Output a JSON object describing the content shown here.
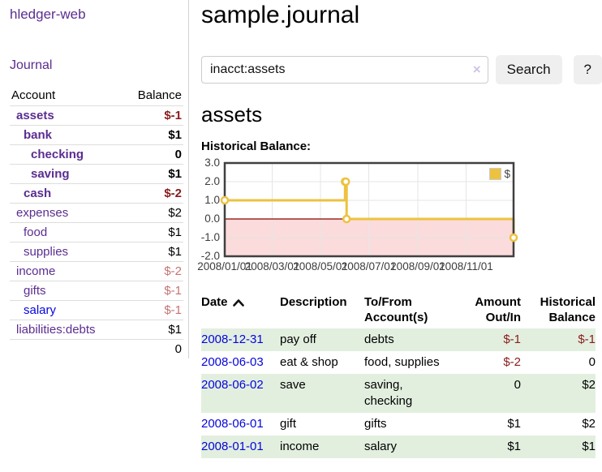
{
  "app": {
    "brand": "hledger-web"
  },
  "colors": {
    "accent_purple": "#5b2d90",
    "link_blue": "#0505dd",
    "negative_strong": "#8b1b1b",
    "negative_soft": "#c47472",
    "row_stripe_green": "#e2efdf",
    "chart_line": "#edc240",
    "chart_negative_fill": "#fbdbdb",
    "chart_zero_line": "#8b0000"
  },
  "sidebar": {
    "journal_link": "Journal",
    "accounts_table": {
      "headers": [
        "Account",
        "Balance"
      ],
      "rows": [
        {
          "account": "assets",
          "balance": "$-1",
          "indent": 1,
          "in_account": true,
          "negative": "strong"
        },
        {
          "account": "bank",
          "balance": "$1",
          "indent": 2,
          "in_account": true,
          "negative": null
        },
        {
          "account": "checking",
          "balance": "0",
          "indent": 3,
          "in_account": true,
          "negative": null
        },
        {
          "account": "saving",
          "balance": "$1",
          "indent": 3,
          "in_account": true,
          "negative": null
        },
        {
          "account": "cash",
          "balance": "$-2",
          "indent": 2,
          "in_account": true,
          "negative": "strong"
        },
        {
          "account": "expenses",
          "balance": "$2",
          "indent": 1,
          "in_account": false,
          "negative": null
        },
        {
          "account": "food",
          "balance": "$1",
          "indent": 2,
          "in_account": false,
          "negative": null
        },
        {
          "account": "supplies",
          "balance": "$1",
          "indent": 2,
          "in_account": false,
          "negative": null
        },
        {
          "account": "income",
          "balance": "$-2",
          "indent": 1,
          "in_account": false,
          "negative": "soft"
        },
        {
          "account": "gifts",
          "balance": "$-1",
          "indent": 2,
          "in_account": false,
          "negative": "soft"
        },
        {
          "account": "salary",
          "balance": "$-1",
          "indent": 2,
          "in_account": false,
          "negative": "soft",
          "link_color": "blue"
        },
        {
          "account": "liabilities:debts",
          "balance": "$1",
          "indent": 1,
          "in_account": false,
          "negative": null
        }
      ],
      "total": "0"
    }
  },
  "main": {
    "title": "sample.journal",
    "search": {
      "value": "inacct:assets",
      "clear_icon": "×",
      "button_label": "Search",
      "help_label": "?"
    },
    "account_heading": "assets",
    "chart_label": "Historical Balance:"
  },
  "chart_data": {
    "type": "line",
    "title": "Historical Balance",
    "step": true,
    "x_range": [
      "2008-01-01",
      "2008-12-31"
    ],
    "y_range": [
      -2,
      3
    ],
    "y_ticks": [
      {
        "value": 3,
        "label": "3.0"
      },
      {
        "value": 2,
        "label": "2.0"
      },
      {
        "value": 1,
        "label": "1.0"
      },
      {
        "value": 0,
        "label": "0.0"
      },
      {
        "value": -1,
        "label": "-1.0"
      },
      {
        "value": -2,
        "label": "-2.0"
      }
    ],
    "x_ticks": [
      {
        "value": "2008-01-01",
        "label": "2008/01/01"
      },
      {
        "value": "2008-03-01",
        "label": "2008/03/01"
      },
      {
        "value": "2008-05-01",
        "label": "2008/05/01"
      },
      {
        "value": "2008-07-01",
        "label": "2008/07/01"
      },
      {
        "value": "2008-09-01",
        "label": "2008/09/01"
      },
      {
        "value": "2008-11-01",
        "label": "2008/11/01"
      }
    ],
    "series": [
      {
        "name": "$",
        "color": "#edc240",
        "points": [
          {
            "x": "2008-01-01",
            "y": 1
          },
          {
            "x": "2008-06-01",
            "y": 2
          },
          {
            "x": "2008-06-02",
            "y": 2
          },
          {
            "x": "2008-06-03",
            "y": 0
          },
          {
            "x": "2008-12-31",
            "y": -1
          }
        ]
      }
    ],
    "negative_region_fill": "#fbdbdb",
    "zero_line_color": "#8b0000",
    "grid": true,
    "legend_position": "top-right"
  },
  "register_table": {
    "headers": [
      "Date",
      "Description",
      "To/From Account(s)",
      "Amount Out/In",
      "Historical Balance"
    ],
    "sort": {
      "column": "Date",
      "direction": "ascending"
    },
    "rows": [
      {
        "date": "2008-12-31",
        "description": "pay off",
        "accounts": "debts",
        "amount": "$-1",
        "balance": "$-1",
        "amount_negative": true,
        "balance_negative": true
      },
      {
        "date": "2008-06-03",
        "description": "eat & shop",
        "accounts": "food, supplies",
        "amount": "$-2",
        "balance": "0",
        "amount_negative": true,
        "balance_negative": false
      },
      {
        "date": "2008-06-02",
        "description": "save",
        "accounts": "saving, checking",
        "amount": "0",
        "balance": "$2",
        "amount_negative": false,
        "balance_negative": false
      },
      {
        "date": "2008-06-01",
        "description": "gift",
        "accounts": "gifts",
        "amount": "$1",
        "balance": "$2",
        "amount_negative": false,
        "balance_negative": false
      },
      {
        "date": "2008-01-01",
        "description": "income",
        "accounts": "salary",
        "amount": "$1",
        "balance": "$1",
        "amount_negative": false,
        "balance_negative": false
      }
    ]
  }
}
